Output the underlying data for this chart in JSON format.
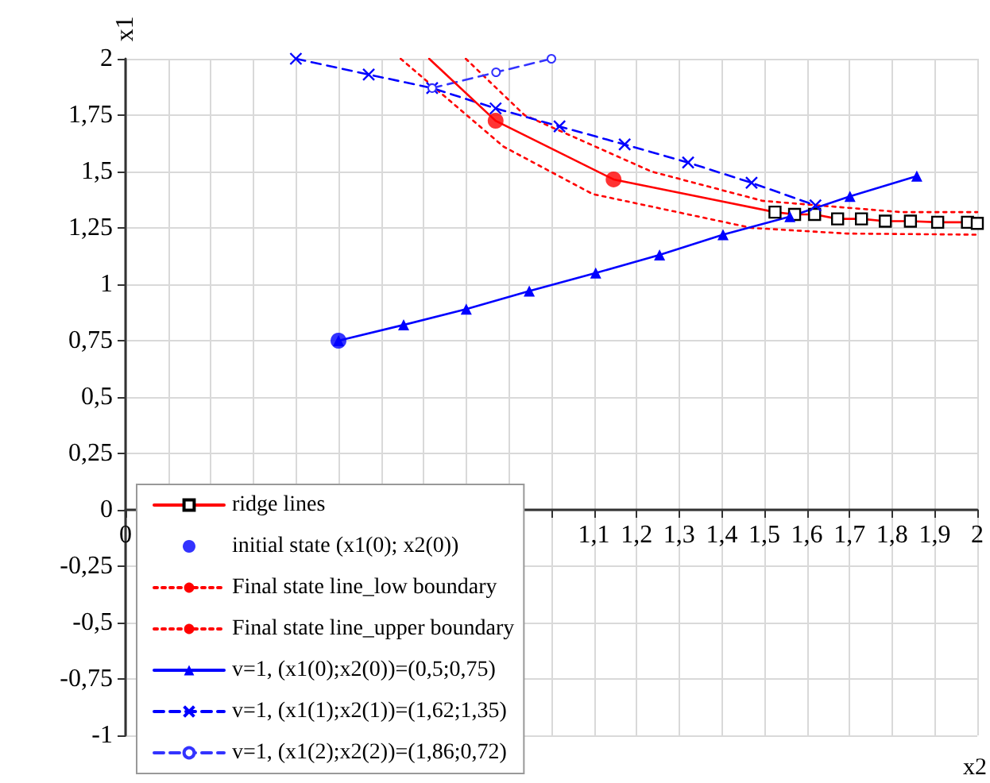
{
  "chart_data": {
    "type": "line",
    "xlabel": "x2",
    "ylabel": "x1",
    "xlim": [
      0,
      2
    ],
    "xticks": [
      0,
      {
        "value": 0.1,
        "label": null
      },
      {
        "value": 0.2,
        "label": null
      },
      {
        "value": 0.3,
        "label": null
      },
      {
        "value": 0.4,
        "label": null
      },
      {
        "value": 0.5,
        "label": null
      },
      {
        "value": 0.6,
        "label": null
      },
      {
        "value": 0.7,
        "label": null
      },
      {
        "value": 0.8,
        "label": null
      },
      {
        "value": 0.9,
        "label": null
      },
      {
        "value": 1,
        "label": null
      },
      {
        "value": 1.1,
        "label": "1,1"
      },
      {
        "value": 1.2,
        "label": "1,2"
      },
      {
        "value": 1.3,
        "label": "1,3"
      },
      {
        "value": 1.4,
        "label": "1,4"
      },
      {
        "value": 1.5,
        "label": "1,5"
      },
      {
        "value": 1.6,
        "label": "1,6"
      },
      {
        "value": 1.7,
        "label": "1,7"
      },
      {
        "value": 1.8,
        "label": "1,8"
      },
      {
        "value": 1.9,
        "label": "1,9"
      },
      2
    ],
    "ylim": [
      -1,
      2
    ],
    "yticks": [
      -1,
      {
        "value": -0.75,
        "label": "-0,75"
      },
      {
        "value": -0.5,
        "label": "-0,5"
      },
      {
        "value": -0.25,
        "label": "-0,25"
      },
      0,
      {
        "value": 0.25,
        "label": "0,25"
      },
      {
        "value": 0.5,
        "label": "0,5"
      },
      {
        "value": 0.75,
        "label": "0,75"
      },
      1,
      {
        "value": 1.25,
        "label": "1,25"
      },
      {
        "value": 1.5,
        "label": "1,5"
      },
      {
        "value": 1.75,
        "label": "1,75"
      },
      2
    ],
    "grid": true,
    "legend": "bottom left",
    "series": [
      {
        "name": "ridge lines",
        "color": "#ff0000",
        "marker": "square",
        "line_style": "solid",
        "x": [
          1.525,
          1.571,
          1.618,
          1.672,
          1.728,
          1.784,
          1.843,
          1.907,
          1.977,
          2
        ],
        "values": [
          1.32,
          1.31,
          1.31,
          1.29,
          1.29,
          1.28,
          1.28,
          1.275,
          1.275,
          1.27
        ]
      },
      {
        "name": "initial state (x1(0); x2(0))",
        "type": "scatter",
        "color": "#0000ff",
        "marker": "circle",
        "x": [
          0.5
        ],
        "values": [
          0.75
        ]
      },
      {
        "name": "Final state line_low boundary",
        "color": "#ff0000",
        "marker": "none",
        "line_style": "dotted",
        "x": [
          0.646,
          0.888,
          1.097,
          1.47,
          1.694,
          2
        ],
        "values": [
          2,
          1.61,
          1.4,
          1.25,
          1.225,
          1.22
        ]
      },
      {
        "name": "Final state line_upper boundary",
        "color": "#ff0000",
        "marker": "none",
        "line_style": "dotted",
        "x": [
          0.799,
          0.937,
          1.235,
          1.496,
          1.821,
          2
        ],
        "values": [
          2,
          1.75,
          1.5,
          1.37,
          1.32,
          1.32
        ]
      },
      {
        "name": "v=1, (x1(0);x2(0))=(0,5;0,75)",
        "color": "#0000ff",
        "marker": "triangle",
        "line_style": "solid",
        "x": [
          0.5,
          0.653,
          0.8,
          0.948,
          1.104,
          1.254,
          1.403,
          1.56,
          1.701,
          1.858
        ],
        "values": [
          0.75,
          0.82,
          0.89,
          0.97,
          1.05,
          1.13,
          1.22,
          1.3,
          1.39,
          1.48
        ]
      },
      {
        "name": "v=1, (x1(1);x2(1))=(1,62;1,35)",
        "color": "#0000ff",
        "marker": "cross",
        "line_style": "dashed",
        "x": [
          0.4,
          0.571,
          0.72,
          0.869,
          1.019,
          1.172,
          1.321,
          1.47,
          1.62
        ],
        "values": [
          2,
          1.93,
          1.87,
          1.78,
          1.7,
          1.62,
          1.54,
          1.45,
          1.35
        ]
      },
      {
        "name": "v=1, (x1(2);x2(2))=(1,86;0,72)",
        "color": "#3333ff",
        "marker": "circle",
        "line_style": "dashed",
        "x": [
          0.72,
          0.87,
          1.0
        ],
        "values": [
          1.87,
          1.94,
          2
        ]
      },
      {
        "color": "#ff0000",
        "marker": "none",
        "line_style": "solid",
        "x": [
          0.713,
          0.869,
          1.146,
          1.525
        ],
        "values": [
          2,
          1.725,
          1.465,
          1.32
        ]
      },
      {
        "type": "scatter",
        "color": "#ff0000",
        "marker": "circle",
        "x": [
          0.869,
          1.146
        ],
        "values": [
          1.725,
          1.465
        ]
      }
    ]
  }
}
